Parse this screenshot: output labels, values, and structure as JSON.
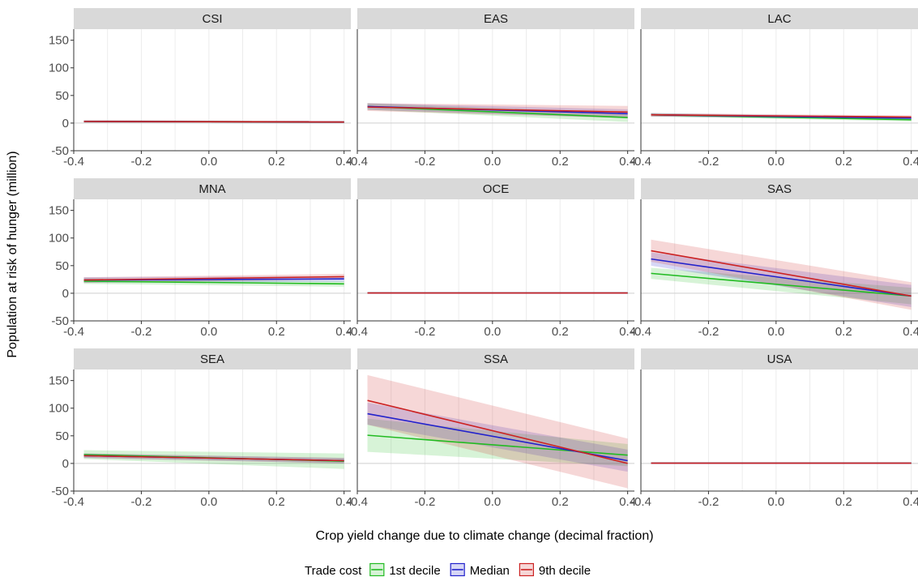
{
  "chart_data": {
    "type": "line",
    "xlabel": "Crop yield change due to climate change (decimal fraction)",
    "ylabel": "Population at risk of hunger (million)",
    "xlim": [
      -0.4,
      0.42
    ],
    "ylim": [
      -50,
      170
    ],
    "xticks": [
      -0.4,
      -0.2,
      0.0,
      0.2,
      0.4
    ],
    "x_tick_labels": [
      "-0.4",
      "-0.2",
      "0.0",
      "0.2",
      "0.4"
    ],
    "yticks": [
      -50,
      0,
      50,
      100,
      150
    ],
    "y_tick_labels": [
      "-50",
      "0",
      "50",
      "100",
      "150"
    ],
    "grid": true,
    "legend": {
      "title": "Trade cost",
      "position": "bottom",
      "entries": [
        "1st decile",
        "Median",
        "9th decile"
      ]
    },
    "series_colors": {
      "1st decile": "#22bb22",
      "Median": "#2222cc",
      "9th decile": "#cc2222"
    },
    "panels": [
      {
        "region": "CSI",
        "x_range": [
          -0.37,
          0.4
        ],
        "series": [
          {
            "name": "1st decile",
            "y": [
              3,
              2
            ],
            "band": [
              [
                1,
                5
              ],
              [
                0,
                4
              ]
            ]
          },
          {
            "name": "Median",
            "y": [
              3,
              2
            ],
            "band": [
              [
                1,
                5
              ],
              [
                0,
                4
              ]
            ]
          },
          {
            "name": "9th decile",
            "y": [
              3,
              2
            ],
            "band": [
              [
                1,
                5
              ],
              [
                0,
                4
              ]
            ]
          }
        ]
      },
      {
        "region": "EAS",
        "x_range": [
          -0.37,
          0.4
        ],
        "series": [
          {
            "name": "1st decile",
            "y": [
              30,
              10
            ],
            "band": [
              [
                24,
                36
              ],
              [
                2,
                18
              ]
            ]
          },
          {
            "name": "Median",
            "y": [
              30,
              17
            ],
            "band": [
              [
                24,
                36
              ],
              [
                9,
                25
              ]
            ]
          },
          {
            "name": "9th decile",
            "y": [
              29,
              20
            ],
            "band": [
              [
                22,
                36
              ],
              [
                9,
                31
              ]
            ]
          }
        ]
      },
      {
        "region": "LAC",
        "x_range": [
          -0.37,
          0.4
        ],
        "series": [
          {
            "name": "1st decile",
            "y": [
              15,
              6
            ],
            "band": [
              [
                12,
                18
              ],
              [
                3,
                9
              ]
            ]
          },
          {
            "name": "Median",
            "y": [
              15,
              9
            ],
            "band": [
              [
                12,
                18
              ],
              [
                6,
                12
              ]
            ]
          },
          {
            "name": "9th decile",
            "y": [
              15,
              11
            ],
            "band": [
              [
                12,
                18
              ],
              [
                8,
                14
              ]
            ]
          }
        ]
      },
      {
        "region": "MNA",
        "x_range": [
          -0.37,
          0.4
        ],
        "series": [
          {
            "name": "1st decile",
            "y": [
              22,
              17
            ],
            "band": [
              [
                17,
                27
              ],
              [
                12,
                22
              ]
            ]
          },
          {
            "name": "Median",
            "y": [
              24,
              26
            ],
            "band": [
              [
                19,
                29
              ],
              [
                21,
                31
              ]
            ]
          },
          {
            "name": "9th decile",
            "y": [
              24,
              30
            ],
            "band": [
              [
                19,
                29
              ],
              [
                25,
                35
              ]
            ]
          }
        ]
      },
      {
        "region": "OCE",
        "x_range": [
          -0.37,
          0.4
        ],
        "series": [
          {
            "name": "1st decile",
            "y": [
              0.5,
              0.5
            ],
            "band": [
              [
                0,
                1
              ],
              [
                0,
                1
              ]
            ]
          },
          {
            "name": "Median",
            "y": [
              0.5,
              0.5
            ],
            "band": [
              [
                0,
                1
              ],
              [
                0,
                1
              ]
            ]
          },
          {
            "name": "9th decile",
            "y": [
              0.5,
              0.5
            ],
            "band": [
              [
                0,
                1
              ],
              [
                0,
                1
              ]
            ]
          }
        ]
      },
      {
        "region": "SAS",
        "x_range": [
          -0.37,
          0.4
        ],
        "series": [
          {
            "name": "1st decile",
            "y": [
              36,
              -5
            ],
            "band": [
              [
                26,
                46
              ],
              [
                -20,
                10
              ]
            ]
          },
          {
            "name": "Median",
            "y": [
              62,
              -5
            ],
            "band": [
              [
                50,
                74
              ],
              [
                -25,
                15
              ]
            ]
          },
          {
            "name": "9th decile",
            "y": [
              77,
              -5
            ],
            "band": [
              [
                57,
                97
              ],
              [
                -30,
                20
              ]
            ]
          }
        ]
      },
      {
        "region": "SEA",
        "x_range": [
          -0.37,
          0.4
        ],
        "series": [
          {
            "name": "1st decile",
            "y": [
              16,
              4
            ],
            "band": [
              [
                8,
                24
              ],
              [
                -10,
                18
              ]
            ]
          },
          {
            "name": "Median",
            "y": [
              14,
              5
            ],
            "band": [
              [
                10,
                18
              ],
              [
                0,
                10
              ]
            ]
          },
          {
            "name": "9th decile",
            "y": [
              14,
              5
            ],
            "band": [
              [
                10,
                18
              ],
              [
                0,
                10
              ]
            ]
          }
        ]
      },
      {
        "region": "SSA",
        "x_range": [
          -0.37,
          0.4
        ],
        "series": [
          {
            "name": "1st decile",
            "y": [
              51,
              15
            ],
            "band": [
              [
                21,
                81
              ],
              [
                -5,
                35
              ]
            ]
          },
          {
            "name": "Median",
            "y": [
              90,
              5
            ],
            "band": [
              [
                70,
                110
              ],
              [
                -15,
                25
              ]
            ]
          },
          {
            "name": "9th decile",
            "y": [
              114,
              0
            ],
            "band": [
              [
                70,
                160
              ],
              [
                -45,
                45
              ]
            ]
          }
        ]
      },
      {
        "region": "USA",
        "x_range": [
          -0.37,
          0.4
        ],
        "series": [
          {
            "name": "1st decile",
            "y": [
              0.5,
              0.5
            ],
            "band": [
              [
                0,
                1
              ],
              [
                0,
                1
              ]
            ]
          },
          {
            "name": "Median",
            "y": [
              0.5,
              0.5
            ],
            "band": [
              [
                0,
                1
              ],
              [
                0,
                1
              ]
            ]
          },
          {
            "name": "9th decile",
            "y": [
              0.5,
              0.5
            ],
            "band": [
              [
                0,
                1
              ],
              [
                0,
                1
              ]
            ]
          }
        ]
      }
    ]
  }
}
